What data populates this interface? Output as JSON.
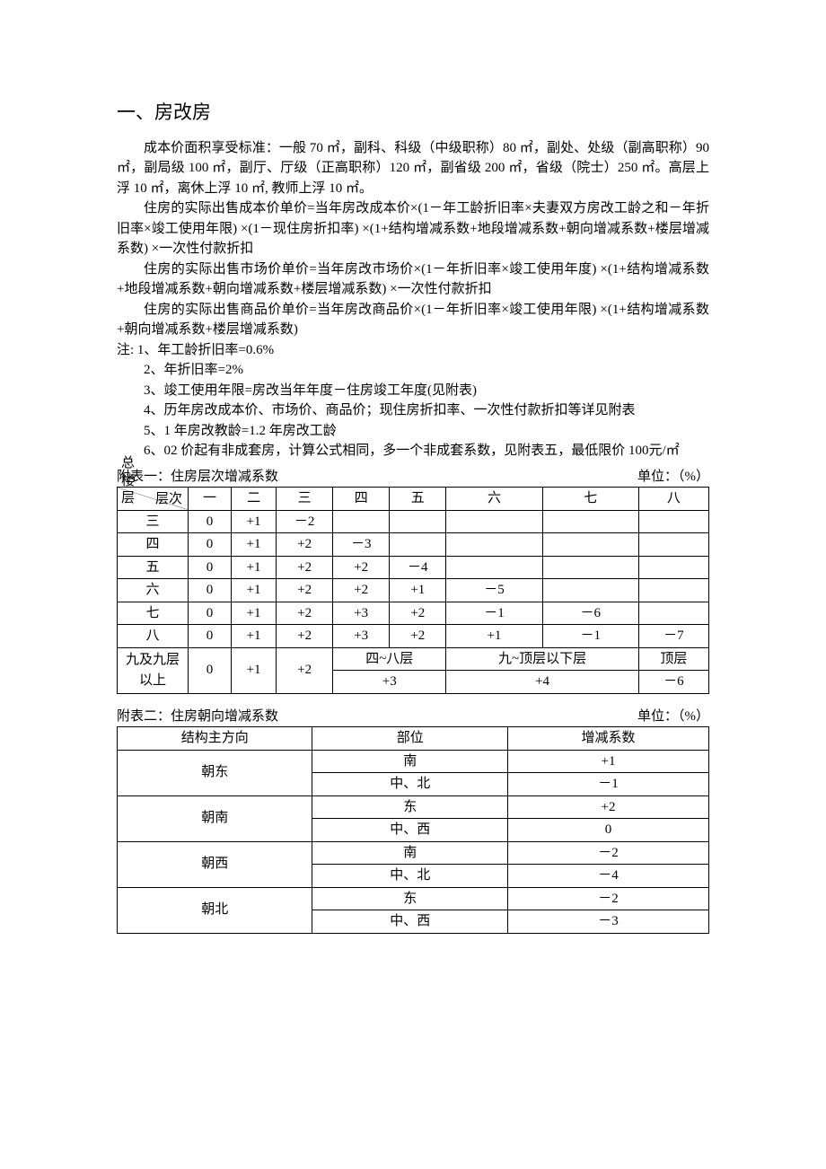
{
  "heading": "一、房改房",
  "paragraphs": {
    "p1": "成本价面积享受标准：一般 70 ㎡，副科、科级（中级职称）80 ㎡，副处、处级（副高职称）90 ㎡，副局级 100 ㎡，副厅、厅级（正高职称）120 ㎡，副省级 200 ㎡，省级（院士）250 ㎡。高层上浮 10 ㎡，离休上浮 10 ㎡, 教师上浮 10 ㎡。",
    "p2": "住房的实际出售成本价单价=当年房改成本价×(1－年工龄折旧率×夫妻双方房改工龄之和－年折旧率×竣工使用年限) ×(1－现住房折扣率) ×(1+结构增减系数+地段增减系数+朝向增减系数+楼层增减系数) ×一次性付款折扣",
    "p3": "住房的实际出售市场价单价=当年房改市场价×(1－年折旧率×竣工使用年度) ×(1+结构增减系数+地段增减系数+朝向增减系数+楼层增减系数) ×一次性付款折扣",
    "p4": "住房的实际出售商品价单价=当年房改商品价×(1－年折旧率×竣工使用年限) ×(1+结构增减系数+朝向增减系数+楼层增减系数)"
  },
  "notes": {
    "n0": "注: 1、年工龄折旧率=0.6%",
    "n1": "2、年折旧率=2%",
    "n2": "3、竣工使用年限=房改当年年度－住房竣工年度(见附表)",
    "n3": "4、历年房改成本价、市场价、商品价；现住房折扣率、一次性付款折扣等详见附表",
    "n4": "5、1 年房改教龄=1.2 年房改工龄",
    "n5": "6、02 价起有非成套房，计算公式相同，多一个非成套系数，见附表五，最低限价 100元/㎡"
  },
  "table1": {
    "caption_left": "附表一：住房层次增减系数",
    "caption_right": "单位：（%）",
    "diag_top": "层次",
    "diag_bot": "总\n楼\n层",
    "cols": [
      "一",
      "二",
      "三",
      "四",
      "五",
      "六",
      "七",
      "八"
    ],
    "rows": [
      {
        "label": "三",
        "cells": [
          "0",
          "+1",
          "－2",
          "",
          "",
          "",
          "",
          ""
        ]
      },
      {
        "label": "四",
        "cells": [
          "0",
          "+1",
          "+2",
          "－3",
          "",
          "",
          "",
          ""
        ]
      },
      {
        "label": "五",
        "cells": [
          "0",
          "+1",
          "+2",
          "+2",
          "－4",
          "",
          "",
          ""
        ]
      },
      {
        "label": "六",
        "cells": [
          "0",
          "+1",
          "+2",
          "+2",
          "+1",
          "－5",
          "",
          ""
        ]
      },
      {
        "label": "七",
        "cells": [
          "0",
          "+1",
          "+2",
          "+3",
          "+2",
          "－1",
          "－6",
          ""
        ]
      },
      {
        "label": "八",
        "cells": [
          "0",
          "+1",
          "+2",
          "+3",
          "+2",
          "+1",
          "－1",
          "－7"
        ]
      }
    ],
    "last_row": {
      "label": "九及九层以上",
      "c1": "0",
      "c2": "+1",
      "c3": "+2",
      "g1_top": "四~八层",
      "g1_bot": "+3",
      "g2_top": "九~顶层以下层",
      "g2_bot": "+4",
      "g3_top": "顶层",
      "g3_bot": "－6"
    }
  },
  "table2": {
    "caption_left": "附表二：住房朝向增减系数",
    "caption_right": "单位：（%）",
    "headers": [
      "结构主方向",
      "部位",
      "增减系数"
    ],
    "rows": [
      {
        "dir": "朝东",
        "parts": [
          [
            "南",
            "+1"
          ],
          [
            "中、北",
            "－1"
          ]
        ]
      },
      {
        "dir": "朝南",
        "parts": [
          [
            "东",
            "+2"
          ],
          [
            "中、西",
            "0"
          ]
        ]
      },
      {
        "dir": "朝西",
        "parts": [
          [
            "南",
            "－2"
          ],
          [
            "中、北",
            "－4"
          ]
        ]
      },
      {
        "dir": "朝北",
        "parts": [
          [
            "东",
            "－2"
          ],
          [
            "中、西",
            "－3"
          ]
        ]
      }
    ]
  }
}
